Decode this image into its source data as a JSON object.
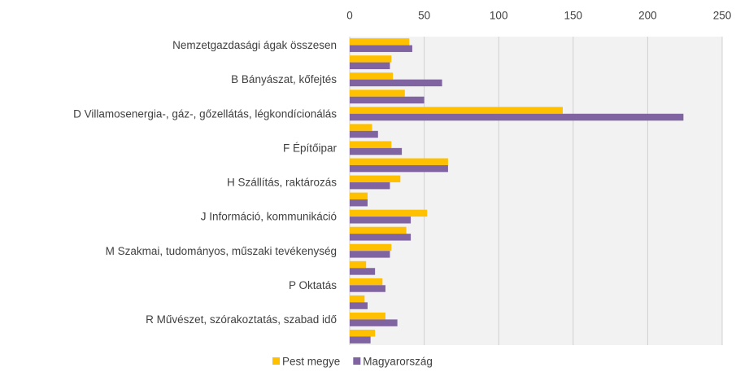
{
  "chart_data": {
    "type": "hbar",
    "categories": [
      "Nemzetgazdasági ágak összesen",
      null,
      "B Bányászat, kőfejtés",
      null,
      "D Villamosenergia-, gáz-, gőzellátás, légkondícionálás",
      null,
      "F Építőipar",
      null,
      "H Szállítás, raktározás",
      null,
      "J Információ, kommunikáció",
      null,
      "M Szakmai, tudományos, műszaki tevékenység",
      null,
      "P Oktatás",
      null,
      "R Művészet, szórakoztatás, szabad idő",
      null
    ],
    "series": [
      {
        "name": "Pest megye",
        "color": "#ffc000",
        "values": [
          40,
          28,
          29,
          37,
          143,
          15,
          28,
          66,
          34,
          12,
          52,
          38,
          28,
          11,
          22,
          10,
          24,
          17
        ]
      },
      {
        "name": "Magyarország",
        "color": "#8064a2",
        "values": [
          42,
          27,
          62,
          50,
          224,
          19,
          35,
          66,
          27,
          12,
          41,
          41,
          27,
          17,
          24,
          12,
          32,
          14
        ]
      }
    ],
    "xlim": [
      0,
      250
    ],
    "xticks": [
      0,
      50,
      100,
      150,
      200,
      250
    ],
    "grid": true,
    "legend": "bottom"
  }
}
